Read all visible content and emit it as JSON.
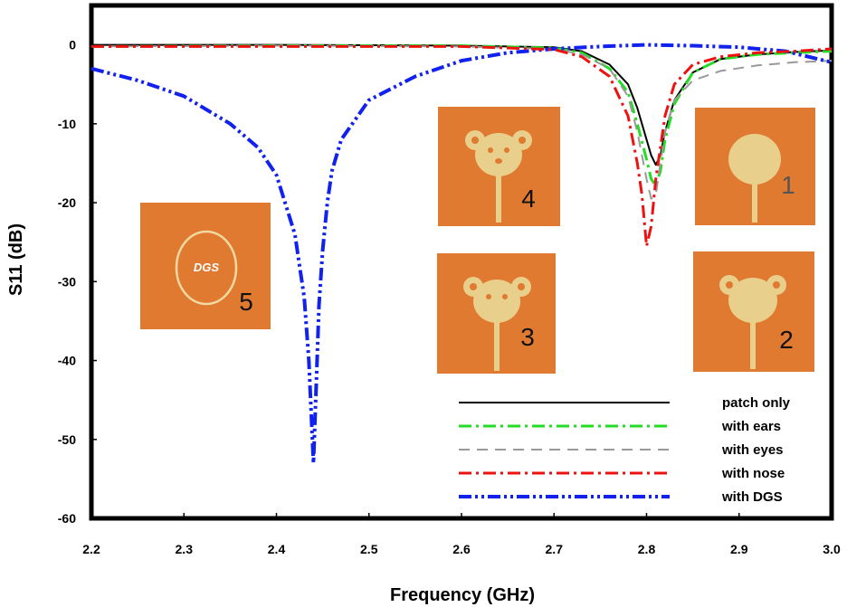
{
  "chart_data": {
    "type": "line",
    "title": "",
    "xlabel": "Frequency (GHz)",
    "ylabel": "S11 (dB)",
    "xlim": [
      2.2,
      3.0
    ],
    "ylim": [
      -60,
      5
    ],
    "xticks": [
      2.2,
      2.3,
      2.4,
      2.5,
      2.6,
      2.7,
      2.8,
      2.9,
      3.0
    ],
    "xtick_labels": [
      "2.2",
      "2.3",
      "2.4",
      "2.5",
      "2.6",
      "2.7",
      "2.8",
      "2.9",
      "3.0"
    ],
    "yticks": [
      0,
      -10,
      -20,
      -30,
      -40,
      -50,
      -60
    ],
    "ytick_labels": [
      "0",
      "-10",
      "-20",
      "-30",
      "-40",
      "-50",
      "-60"
    ],
    "grid": false,
    "legend_position": "bottom-right",
    "series": [
      {
        "name": "patch only",
        "color": "#000000",
        "style": "solid",
        "x": [
          2.2,
          2.4,
          2.6,
          2.7,
          2.73,
          2.76,
          2.78,
          2.79,
          2.8,
          2.805,
          2.81,
          2.815,
          2.82,
          2.83,
          2.85,
          2.88,
          2.92,
          2.96,
          3.0
        ],
        "y": [
          0,
          0,
          -0.1,
          -0.3,
          -0.8,
          -2.5,
          -5,
          -8,
          -12,
          -14,
          -15.2,
          -14,
          -11,
          -7,
          -3.5,
          -1.8,
          -1.2,
          -0.9,
          -0.7
        ]
      },
      {
        "name": "with ears",
        "color": "#22dd22",
        "style": "dashdot",
        "x": [
          2.2,
          2.4,
          2.6,
          2.7,
          2.73,
          2.76,
          2.78,
          2.79,
          2.8,
          2.805,
          2.81,
          2.815,
          2.82,
          2.83,
          2.85,
          2.88,
          2.92,
          2.96,
          3.0
        ],
        "y": [
          -0.2,
          -0.1,
          -0.1,
          -0.4,
          -1,
          -3,
          -6,
          -10,
          -14.5,
          -17,
          -17.8,
          -16,
          -12,
          -7.5,
          -3.5,
          -1.8,
          -1.2,
          -1,
          -0.8
        ]
      },
      {
        "name": "with eyes",
        "color": "#999999",
        "style": "dashed",
        "x": [
          2.2,
          2.4,
          2.6,
          2.7,
          2.73,
          2.76,
          2.78,
          2.79,
          2.8,
          2.805,
          2.81,
          2.815,
          2.82,
          2.83,
          2.85,
          2.88,
          2.92,
          2.96,
          3.0
        ],
        "y": [
          -0.2,
          -0.1,
          -0.2,
          -0.5,
          -1.2,
          -3,
          -6.5,
          -11,
          -17,
          -19.5,
          -19,
          -15,
          -11,
          -7,
          -4.5,
          -3.3,
          -2.6,
          -2.2,
          -2
        ]
      },
      {
        "name": "with nose",
        "color": "#ee1111",
        "style": "dashdot",
        "x": [
          2.2,
          2.4,
          2.6,
          2.7,
          2.73,
          2.76,
          2.78,
          2.79,
          2.795,
          2.8,
          2.805,
          2.81,
          2.82,
          2.83,
          2.85,
          2.88,
          2.92,
          2.96,
          3.0
        ],
        "y": [
          -0.2,
          -0.2,
          -0.2,
          -0.6,
          -1.5,
          -4,
          -9,
          -15,
          -19,
          -25.5,
          -23,
          -17,
          -9,
          -5,
          -2.5,
          -1.5,
          -1,
          -0.8,
          -0.5
        ]
      },
      {
        "name": "with DGS",
        "color": "#1122ee",
        "style": "dashdotdot",
        "x": [
          2.2,
          2.25,
          2.3,
          2.35,
          2.38,
          2.4,
          2.42,
          2.43,
          2.435,
          2.44,
          2.443,
          2.446,
          2.45,
          2.455,
          2.46,
          2.47,
          2.5,
          2.55,
          2.6,
          2.65,
          2.7,
          2.75,
          2.8,
          2.85,
          2.9,
          2.95,
          3.0
        ],
        "y": [
          -3,
          -4.5,
          -6.5,
          -10,
          -13,
          -16.5,
          -24,
          -32,
          -40,
          -53,
          -43,
          -33,
          -26,
          -20,
          -16,
          -12,
          -7,
          -4,
          -2,
          -1,
          -0.5,
          -0.2,
          0,
          -0.1,
          -0.3,
          -0.8,
          -2.2
        ]
      }
    ]
  },
  "insets": [
    {
      "number": "5",
      "shape": "DGS ring",
      "text": "DGS"
    },
    {
      "number": "4",
      "shape": "bear with ears, eyes and nose"
    },
    {
      "number": "3",
      "shape": "bear with ears and eyes"
    },
    {
      "number": "1",
      "shape": "circular patch only"
    },
    {
      "number": "2",
      "shape": "bear with ears"
    }
  ],
  "colors": {
    "substrate": "#e07a30",
    "copper": "#e8cf8c",
    "frame": "#000000"
  }
}
